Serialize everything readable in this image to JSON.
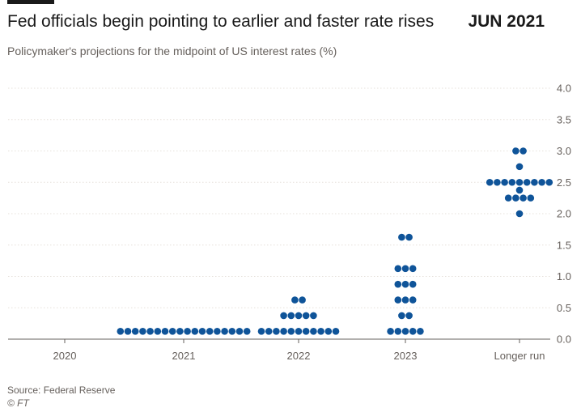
{
  "header": {
    "title": "Fed officials begin pointing to earlier and faster rate rises",
    "badge": "JUN 2021",
    "subtitle": "Policymaker's projections for the midpoint of US interest rates (%)"
  },
  "footer": {
    "source": "Source: Federal Reserve",
    "credit": "© FT"
  },
  "colors": {
    "dot": "#0f5499",
    "grid": "#e6e0da",
    "axis": "#66605c",
    "text": "#33302e"
  },
  "chart_data": {
    "type": "scatter",
    "title": "Fed officials begin pointing to earlier and faster rate rises",
    "subtitle": "Policymaker's projections for the midpoint of US interest rates (%)",
    "categories": [
      "2020",
      "2021",
      "2022",
      "2023",
      "Longer run"
    ],
    "y_ticks": [
      "0.0",
      "0.5",
      "1.0",
      "1.5",
      "2.0",
      "2.5",
      "3.0",
      "3.5",
      "4.0"
    ],
    "ylim": [
      0,
      4
    ],
    "grid": true,
    "groups": [
      {
        "category": "2020",
        "dots": []
      },
      {
        "category": "2021",
        "dots": [
          {
            "y": 0.125,
            "count": 18
          }
        ]
      },
      {
        "category": "2022",
        "dots": [
          {
            "y": 0.125,
            "count": 11
          },
          {
            "y": 0.375,
            "count": 5
          },
          {
            "y": 0.625,
            "count": 2
          }
        ]
      },
      {
        "category": "2023",
        "dots": [
          {
            "y": 0.125,
            "count": 5
          },
          {
            "y": 0.375,
            "count": 2
          },
          {
            "y": 0.625,
            "count": 3
          },
          {
            "y": 0.875,
            "count": 3
          },
          {
            "y": 1.125,
            "count": 3
          },
          {
            "y": 1.625,
            "count": 2
          }
        ]
      },
      {
        "category": "Longer run",
        "dots": [
          {
            "y": 2.0,
            "count": 1
          },
          {
            "y": 2.25,
            "count": 4
          },
          {
            "y": 2.375,
            "count": 1
          },
          {
            "y": 2.5,
            "count": 9
          },
          {
            "y": 2.75,
            "count": 1
          },
          {
            "y": 3.0,
            "count": 2
          }
        ]
      }
    ]
  }
}
